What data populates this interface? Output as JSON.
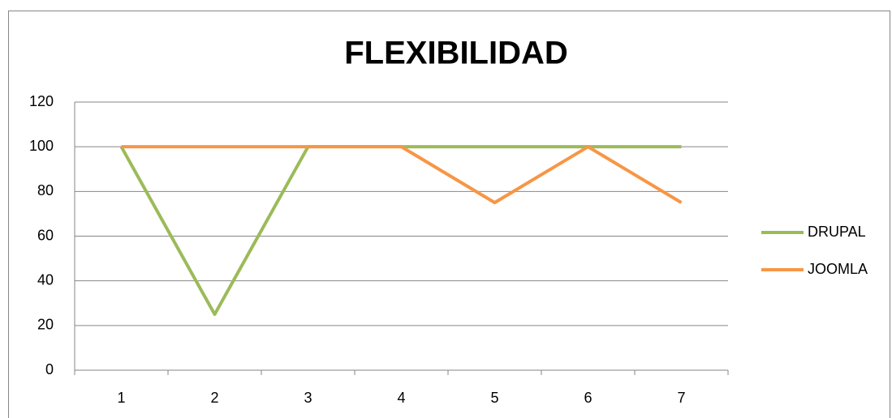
{
  "chart_data": {
    "type": "line",
    "title": "FLEXIBILIDAD",
    "categories": [
      "1",
      "2",
      "3",
      "4",
      "5",
      "6",
      "7"
    ],
    "series": [
      {
        "name": "DRUPAL",
        "color": "#9bbb59",
        "values": [
          100,
          25,
          100,
          100,
          100,
          100,
          100
        ]
      },
      {
        "name": "JOOMLA",
        "color": "#f79646",
        "values": [
          100,
          100,
          100,
          100,
          75,
          100,
          75
        ]
      }
    ],
    "ylim": [
      0,
      120
    ],
    "yticks": [
      0,
      20,
      40,
      60,
      80,
      100,
      120
    ],
    "grid": true,
    "legend": "right"
  }
}
